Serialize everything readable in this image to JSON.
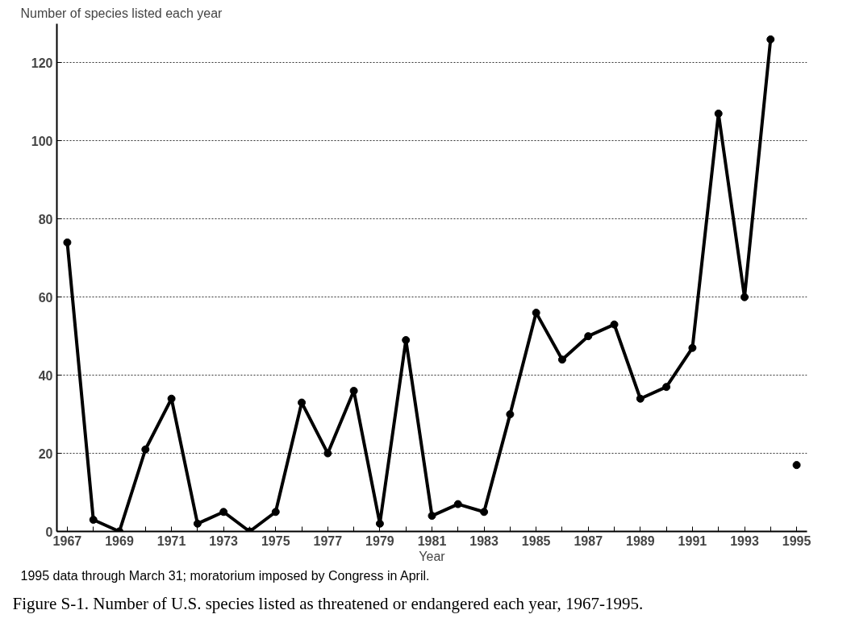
{
  "chart_data": {
    "type": "line",
    "ylabel": "Number of species listed each year",
    "xlabel": "Year",
    "annotations": [
      "1995 data through March 31; moratorium imposed by Congress in April.",
      "Figure S-1. Number of U.S. species listed as threatened or endangered each year, 1967-1995."
    ],
    "series": [
      {
        "color": "#000000",
        "x": [
          1967,
          1968,
          1969,
          1970,
          1971,
          1972,
          1973,
          1974,
          1975,
          1976,
          1977,
          1978,
          1979,
          1980,
          1981,
          1982,
          1983,
          1984,
          1985,
          1986,
          1987,
          1988,
          1989,
          1990,
          1991,
          1992,
          1993,
          1994
        ],
        "values": [
          74,
          3,
          0,
          21,
          34,
          2,
          5,
          0,
          5,
          33,
          20,
          36,
          2,
          49,
          4,
          7,
          5,
          30,
          56,
          44,
          50,
          53,
          34,
          37,
          47,
          107,
          60,
          126
        ]
      },
      {
        "type": "scatter",
        "color": "#000000",
        "x": [
          1995
        ],
        "values": [
          17
        ]
      }
    ],
    "xlim": [
      1966.6,
      1995.4
    ],
    "ylim": [
      0,
      130
    ],
    "xticks": [
      1967,
      {
        "value": 1968,
        "label": null
      },
      1969,
      {
        "value": 1970,
        "label": null
      },
      1971,
      {
        "value": 1972,
        "label": null
      },
      1973,
      {
        "value": 1974,
        "label": null
      },
      1975,
      {
        "value": 1976,
        "label": null
      },
      1977,
      {
        "value": 1978,
        "label": null
      },
      1979,
      {
        "value": 1980,
        "label": null
      },
      1981,
      {
        "value": 1982,
        "label": null
      },
      1983,
      {
        "value": 1984,
        "label": null
      },
      1985,
      {
        "value": 1986,
        "label": null
      },
      1987,
      {
        "value": 1988,
        "label": null
      },
      1989,
      {
        "value": 1990,
        "label": null
      },
      1991,
      {
        "value": 1992,
        "label": null
      },
      1993,
      {
        "value": 1994,
        "label": null
      },
      1995
    ],
    "yticks": [
      0,
      20,
      40,
      60,
      80,
      100,
      120
    ],
    "grid": "y",
    "marker": "circle",
    "line_style": "solid"
  }
}
